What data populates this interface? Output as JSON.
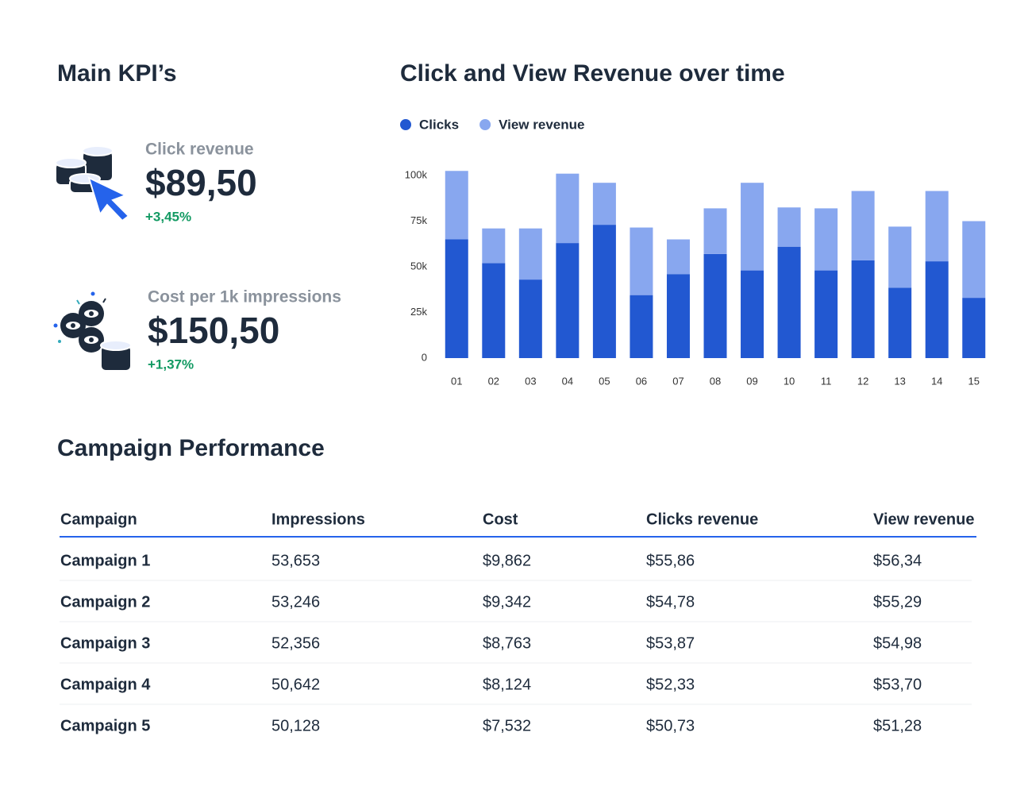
{
  "kpis": {
    "title": "Main KPI’s",
    "items": [
      {
        "label": "Click revenue",
        "value": "$89,50",
        "change": "+3,45%"
      },
      {
        "label": "Cost per 1k impressions",
        "value": "$150,50",
        "change": "+1,37%"
      }
    ]
  },
  "chart_data": {
    "type": "bar",
    "stacked": true,
    "title": "Click and View Revenue over time",
    "categories": [
      "01",
      "02",
      "03",
      "04",
      "05",
      "06",
      "07",
      "08",
      "09",
      "10",
      "11",
      "12",
      "13",
      "14",
      "15"
    ],
    "series": [
      {
        "name": "Clicks",
        "color": "#2258d1",
        "values": [
          65000,
          52000,
          43000,
          63000,
          73000,
          34500,
          46000,
          57000,
          48000,
          61000,
          48000,
          53500,
          38500,
          53000,
          33000
        ]
      },
      {
        "name": "View revenue",
        "color": "#88a7ef",
        "values": [
          37500,
          19000,
          28000,
          38000,
          23000,
          37000,
          19000,
          25000,
          48000,
          21500,
          34000,
          38000,
          33500,
          38500,
          42000
        ]
      }
    ],
    "ylim": [
      0,
      105000
    ],
    "yticks": [
      0,
      {
        "value": 25000,
        "label": "25k"
      },
      {
        "value": 50000,
        "label": "50k"
      },
      {
        "value": 75000,
        "label": "75k"
      },
      {
        "value": 100000,
        "label": "100k"
      }
    ]
  },
  "table": {
    "title": "Campaign Performance",
    "columns": [
      "Campaign",
      "Impressions",
      "Cost",
      "Clicks revenue",
      "View revenue"
    ],
    "rows": [
      [
        "Campaign 1",
        "53,653",
        "$9,862",
        "$55,86",
        "$56,34"
      ],
      [
        "Campaign 2",
        "53,246",
        "$9,342",
        "$54,78",
        "$55,29"
      ],
      [
        "Campaign 3",
        "52,356",
        "$8,763",
        "$53,87",
        "$54,98"
      ],
      [
        "Campaign 4",
        "50,642",
        "$8,124",
        "$52,33",
        "$53,70"
      ],
      [
        "Campaign 5",
        "50,128",
        "$7,532",
        "$50,73",
        "$51,28"
      ]
    ]
  }
}
